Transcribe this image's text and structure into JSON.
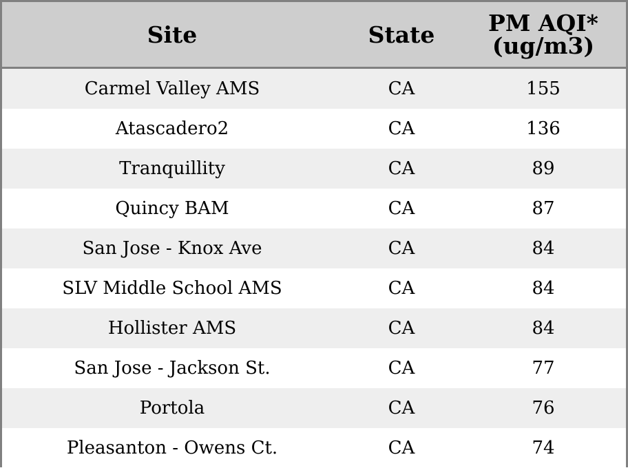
{
  "chart_data": {
    "type": "table",
    "columns": [
      "Site",
      "State",
      "PM AQI*\n(ug/m3)"
    ],
    "rows": [
      {
        "site": "Carmel Valley AMS",
        "state": "CA",
        "pm_aqi": "155"
      },
      {
        "site": "Atascadero2",
        "state": "CA",
        "pm_aqi": "136"
      },
      {
        "site": "Tranquillity",
        "state": "CA",
        "pm_aqi": "89"
      },
      {
        "site": "Quincy BAM",
        "state": "CA",
        "pm_aqi": "87"
      },
      {
        "site": "San Jose - Knox Ave",
        "state": "CA",
        "pm_aqi": "84"
      },
      {
        "site": "SLV Middle School AMS",
        "state": "CA",
        "pm_aqi": "84"
      },
      {
        "site": "Hollister AMS",
        "state": "CA",
        "pm_aqi": "84"
      },
      {
        "site": "San Jose - Jackson St.",
        "state": "CA",
        "pm_aqi": "77"
      },
      {
        "site": "Portola",
        "state": "CA",
        "pm_aqi": "76"
      },
      {
        "site": "Pleasanton - Owens Ct.",
        "state": "CA",
        "pm_aqi": "74"
      }
    ]
  },
  "colors": {
    "header_background": "#cecece",
    "shaded_row": "#eeeeee",
    "plain_row": "#ffffff",
    "border": "#808080",
    "text": "#000000"
  }
}
